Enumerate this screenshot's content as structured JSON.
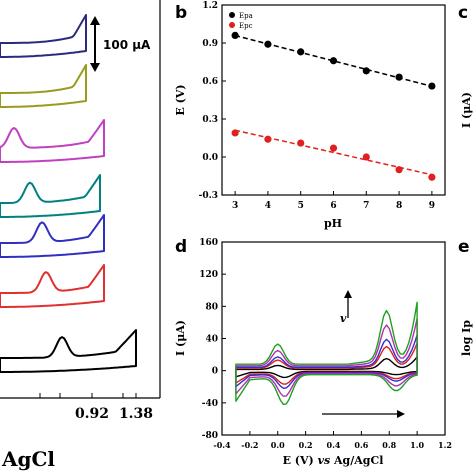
{
  "chart_data": [
    {
      "panel": "a",
      "type": "line",
      "xlabel": "AgCl",
      "x_ticks": [
        "0.92",
        "1.38"
      ],
      "scale_bar_label": "100 μA",
      "series": [
        {
          "color": "#2a2a7e"
        },
        {
          "color": "#9a9a20"
        },
        {
          "color": "#c040c0"
        },
        {
          "color": "#008080"
        },
        {
          "color": "#3030c0"
        },
        {
          "color": "#e03030"
        },
        {
          "color": "#000000"
        }
      ]
    },
    {
      "panel": "b",
      "type": "scatter",
      "xlabel": "pH",
      "ylabel": "E (V)",
      "xlim": [
        2.6,
        9.4
      ],
      "ylim": [
        -0.3,
        1.2
      ],
      "x_ticks": [
        3,
        4,
        5,
        6,
        7,
        8,
        9
      ],
      "y_ticks": [
        "-0.3",
        "0.0",
        "0.3",
        "0.6",
        "0.9",
        "1.2"
      ],
      "legend_placement": "top-left",
      "series": [
        {
          "name": "Epa",
          "color": "#000000",
          "x": [
            3,
            4,
            5,
            6,
            7,
            8,
            9
          ],
          "y": [
            0.96,
            0.89,
            0.83,
            0.76,
            0.68,
            0.63,
            0.56
          ]
        },
        {
          "name": "Epc",
          "color": "#e02020",
          "x": [
            3,
            4,
            5,
            6,
            7,
            8,
            9
          ],
          "y": [
            0.19,
            0.14,
            0.11,
            0.07,
            0.0,
            -0.1,
            -0.16
          ]
        }
      ]
    },
    {
      "panel": "d",
      "type": "line",
      "xlabel_parts": [
        "E (V) ",
        "vs",
        " Ag/AgCl"
      ],
      "ylabel": "I (μA)",
      "xlim": [
        -0.4,
        1.2
      ],
      "ylim": [
        -80,
        160
      ],
      "x_ticks": [
        "-0.4",
        "-0.2",
        "0.0",
        "0.2",
        "0.4",
        "0.6",
        "0.8",
        "1.0",
        "1.2"
      ],
      "y_ticks": [
        "-80",
        "-40",
        "0",
        "40",
        "80",
        "120",
        "160"
      ],
      "arrow_label": "v",
      "series": [
        {
          "color": "#000000",
          "max_current": 25
        },
        {
          "color": "#e02020",
          "max_current": 50
        },
        {
          "color": "#3030d0",
          "max_current": 65
        },
        {
          "color": "#b030b0",
          "max_current": 95
        },
        {
          "color": "#20a020",
          "max_current": 125
        }
      ]
    }
  ],
  "panels": {
    "b_letter": "b",
    "c_letter": "c",
    "c_ylabel_fragment": "I (μA)",
    "d_letter": "d",
    "e_letter": "e",
    "e_ylabel_fragment": "log Ip"
  }
}
